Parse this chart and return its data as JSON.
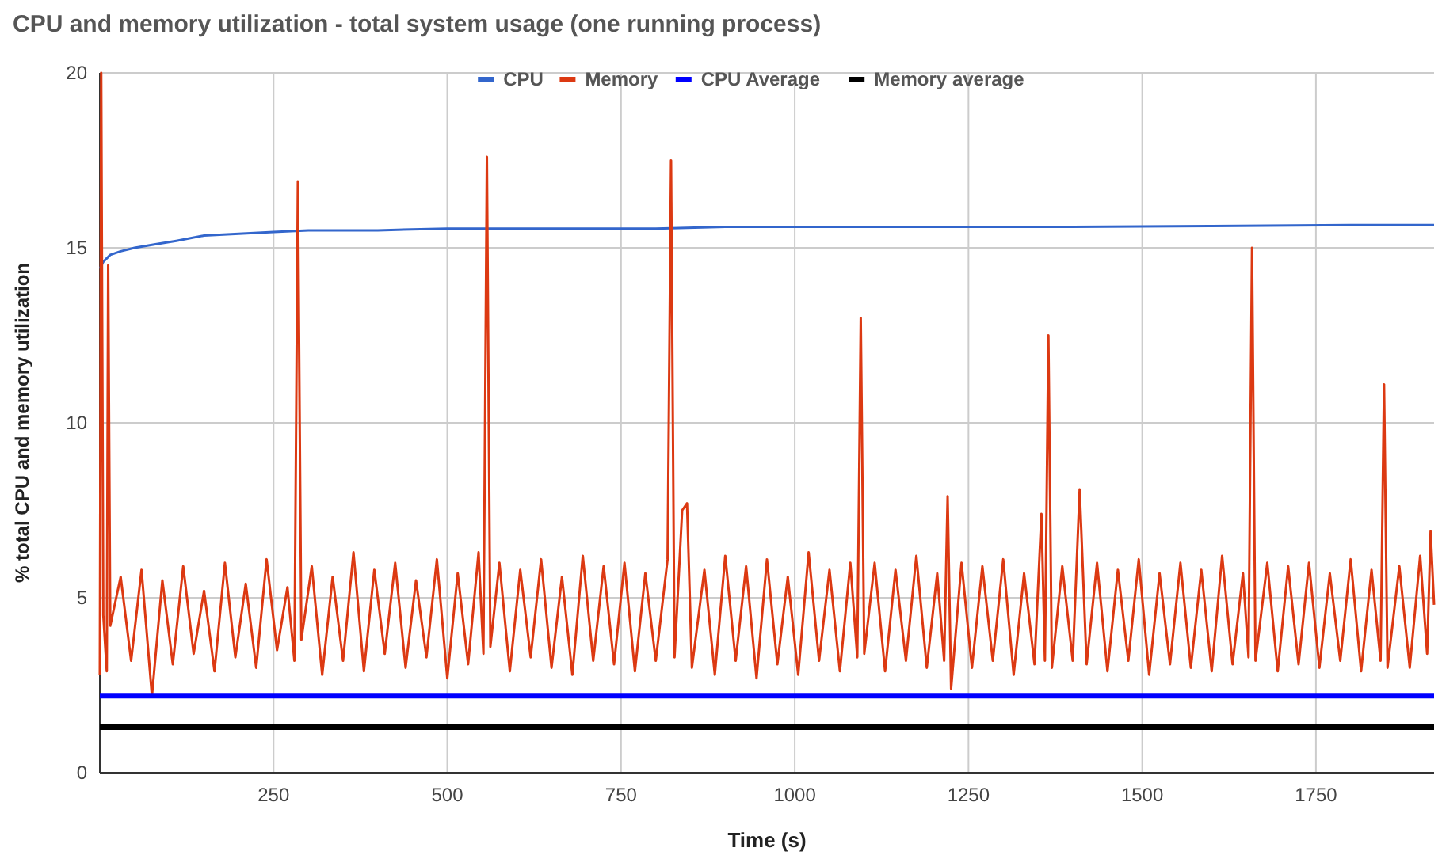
{
  "chart_data": {
    "type": "line",
    "title": "CPU and memory utilization - total system usage (one running process)",
    "xlabel": "Time (s)",
    "ylabel": "% total CPU and memory utilization",
    "xlim": [
      0,
      1920
    ],
    "xticks": [
      250,
      500,
      750,
      1000,
      1250,
      1500,
      1750
    ],
    "ylim": [
      0,
      20
    ],
    "yticks": [
      0,
      5,
      10,
      15,
      20
    ],
    "grid": true,
    "legend": "top",
    "marker": "none",
    "line_style": "solid",
    "series": [
      {
        "name": "CPU",
        "color": "#3366cc",
        "x": [
          0,
          5,
          15,
          30,
          50,
          80,
          110,
          150,
          200,
          250,
          300,
          400,
          500,
          600,
          700,
          800,
          900,
          1000,
          1200,
          1400,
          1600,
          1800,
          1920
        ],
        "values": [
          14.4,
          14.6,
          14.8,
          14.9,
          15.0,
          15.1,
          15.2,
          15.35,
          15.4,
          15.45,
          15.5,
          15.5,
          15.55,
          15.55,
          15.55,
          15.55,
          15.6,
          15.6,
          15.6,
          15.6,
          15.62,
          15.65,
          15.65
        ]
      },
      {
        "name": "Memory",
        "color": "#dc3912",
        "x": [
          0,
          2,
          5,
          10,
          12,
          15,
          30,
          45,
          60,
          75,
          90,
          105,
          120,
          135,
          150,
          165,
          180,
          195,
          210,
          225,
          240,
          255,
          270,
          280,
          285,
          290,
          305,
          320,
          335,
          350,
          365,
          380,
          395,
          410,
          425,
          440,
          455,
          470,
          485,
          500,
          515,
          530,
          545,
          552,
          557,
          562,
          575,
          590,
          605,
          620,
          635,
          650,
          665,
          680,
          695,
          710,
          725,
          740,
          755,
          770,
          785,
          800,
          817,
          822,
          827,
          838,
          845,
          852,
          870,
          885,
          900,
          915,
          930,
          945,
          960,
          975,
          990,
          1005,
          1020,
          1035,
          1050,
          1065,
          1080,
          1090,
          1095,
          1100,
          1115,
          1130,
          1145,
          1160,
          1175,
          1190,
          1205,
          1215,
          1220,
          1225,
          1240,
          1255,
          1270,
          1285,
          1300,
          1315,
          1330,
          1345,
          1355,
          1360,
          1365,
          1370,
          1385,
          1400,
          1410,
          1420,
          1435,
          1450,
          1465,
          1480,
          1495,
          1510,
          1525,
          1540,
          1555,
          1570,
          1585,
          1600,
          1615,
          1630,
          1645,
          1653,
          1658,
          1663,
          1680,
          1695,
          1710,
          1725,
          1740,
          1755,
          1770,
          1785,
          1800,
          1815,
          1830,
          1843,
          1848,
          1853,
          1870,
          1885,
          1900,
          1910,
          1915,
          1920
        ],
        "values": [
          2.8,
          20,
          4.5,
          2.9,
          14.5,
          4.2,
          5.6,
          3.2,
          5.8,
          2.2,
          5.5,
          3.1,
          5.9,
          3.4,
          5.2,
          2.9,
          6.0,
          3.3,
          5.4,
          3.0,
          6.1,
          3.5,
          5.3,
          3.2,
          16.9,
          3.8,
          5.9,
          2.8,
          5.6,
          3.2,
          6.3,
          2.9,
          5.8,
          3.4,
          6.0,
          3.0,
          5.5,
          3.3,
          6.1,
          2.7,
          5.7,
          3.1,
          6.3,
          3.4,
          17.6,
          3.6,
          6.0,
          2.9,
          5.8,
          3.3,
          6.1,
          3.0,
          5.6,
          2.8,
          6.2,
          3.2,
          5.9,
          3.1,
          6.0,
          2.9,
          5.7,
          3.2,
          6.1,
          17.5,
          3.3,
          7.5,
          7.7,
          3.0,
          5.8,
          2.8,
          6.2,
          3.2,
          5.9,
          2.7,
          6.1,
          3.1,
          5.6,
          2.8,
          6.3,
          3.2,
          5.8,
          2.9,
          6.0,
          3.3,
          13.0,
          3.4,
          6.0,
          2.9,
          5.8,
          3.2,
          6.2,
          3.0,
          5.7,
          3.2,
          7.9,
          2.4,
          6.0,
          3.0,
          5.9,
          3.2,
          6.1,
          2.8,
          5.7,
          3.1,
          7.4,
          3.2,
          12.5,
          3.0,
          5.9,
          3.2,
          8.1,
          3.1,
          6.0,
          2.9,
          5.8,
          3.2,
          6.1,
          2.8,
          5.7,
          3.1,
          6.0,
          3.0,
          5.8,
          2.9,
          6.2,
          3.1,
          5.7,
          3.3,
          15.0,
          3.2,
          6.0,
          2.9,
          5.9,
          3.1,
          6.0,
          3.0,
          5.7,
          3.2,
          6.1,
          2.9,
          5.8,
          3.2,
          11.1,
          3.0,
          5.9,
          3.0,
          6.2,
          3.4,
          6.9,
          4.8
        ]
      },
      {
        "name": "CPU Average",
        "color": "#0000ff",
        "x": [
          0,
          1920
        ],
        "values": [
          2.2,
          2.2
        ]
      },
      {
        "name": "Memory average",
        "color": "#000000",
        "x": [
          0,
          1920
        ],
        "values": [
          1.3,
          1.3
        ]
      }
    ]
  }
}
